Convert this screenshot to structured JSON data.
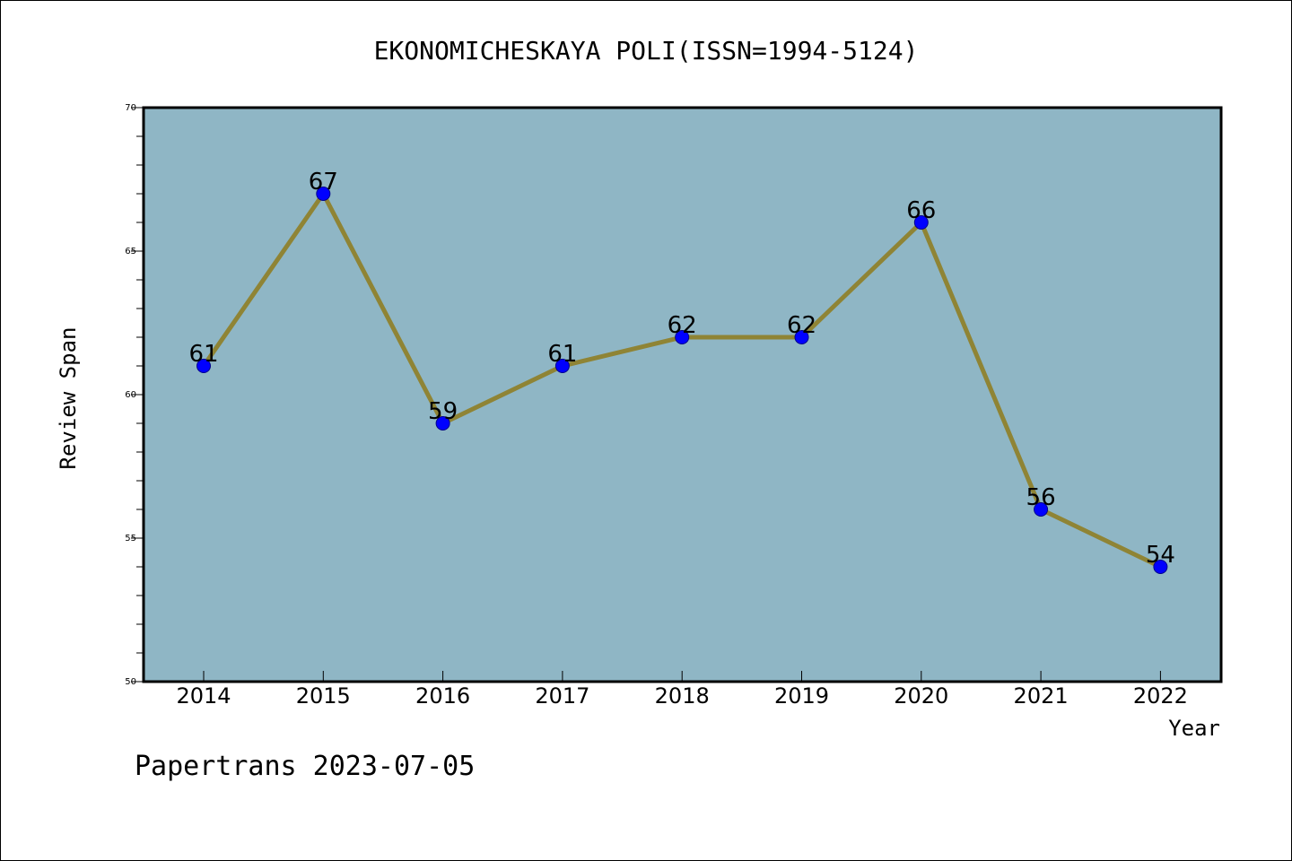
{
  "chart_data": {
    "type": "line",
    "title": "EKONOMICHESKAYA POLI(ISSN=1994-5124)",
    "xlabel": "Year",
    "ylabel": "Review Span",
    "categories": [
      "2014",
      "2015",
      "2016",
      "2017",
      "2018",
      "2019",
      "2020",
      "2021",
      "2022"
    ],
    "values": [
      61,
      67,
      59,
      61,
      62,
      62,
      66,
      56,
      54
    ],
    "ylim": [
      50,
      70
    ],
    "yticks": [
      "50",
      "55",
      "60",
      "65",
      "70"
    ],
    "grid": false,
    "legend": "none"
  },
  "footer": {
    "credit": "Papertrans 2023-07-05"
  },
  "colors": {
    "plot_background": "#8fb6c5",
    "line": "#8f8435",
    "marker": "#0000ff",
    "axis": "#000000"
  }
}
